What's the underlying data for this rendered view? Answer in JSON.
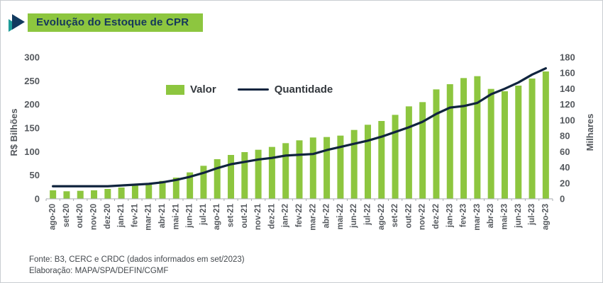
{
  "header": {
    "title": "Evolução do Estoque de CPR"
  },
  "legend": {
    "valor_label": "Valor",
    "quantidade_label": "Quantidade"
  },
  "axes": {
    "left_title": "R$ Bilhões",
    "right_title": "Milhares"
  },
  "footer": {
    "source_line": "Fonte: B3, CERC e CRDC (dados informados em set/2023)",
    "elaboration_line": "Elaboração: MAPA/SPA/DEFIN/CGMF"
  },
  "colors": {
    "bar": "#8dc63f",
    "line": "#10243e",
    "banner_bg": "#8dc63f",
    "banner_text": "#14365c",
    "axis_text": "#55595e",
    "baseline": "#a7abb0"
  },
  "chart_data": {
    "type": "bar",
    "title": "Evolução do Estoque de CPR",
    "categories": [
      "ago-20",
      "set-20",
      "out-20",
      "nov-20",
      "dez-20",
      "jan-21",
      "fev-21",
      "mar-21",
      "abr-21",
      "mai-21",
      "jun-21",
      "jul-21",
      "ago-21",
      "set-21",
      "out-21",
      "nov-21",
      "dez-21",
      "jan-22",
      "fev-22",
      "mar-22",
      "abr-22",
      "mai-22",
      "jun-22",
      "jul-22",
      "ago-22",
      "set-22",
      "out-22",
      "nov-22",
      "dez-22",
      "jan-23",
      "fev-23",
      "mar-23",
      "abr-23",
      "mai-23",
      "jun-23",
      "jul-23",
      "ago-23"
    ],
    "series": [
      {
        "name": "Valor",
        "type": "bar",
        "axis": "left",
        "unit": "R$ bilhões",
        "values": [
          18,
          16,
          17,
          18,
          21,
          24,
          28,
          33,
          38,
          45,
          56,
          70,
          84,
          93,
          99,
          104,
          110,
          118,
          124,
          130,
          131,
          134,
          146,
          157,
          165,
          178,
          196,
          205,
          232,
          243,
          256,
          260,
          233,
          228,
          240,
          255,
          270
        ]
      },
      {
        "name": "Quantidade",
        "type": "line",
        "axis": "right",
        "unit": "milhares",
        "values": [
          16,
          16,
          16,
          16,
          16,
          17,
          18,
          19,
          21,
          24,
          28,
          33,
          39,
          44,
          47,
          50,
          52,
          55,
          56,
          57,
          62,
          66,
          70,
          74,
          79,
          85,
          91,
          98,
          108,
          116,
          118,
          122,
          133,
          140,
          148,
          158,
          166
        ]
      }
    ],
    "left_axis": {
      "title": "R$ Bilhões",
      "min": 0,
      "max": 300,
      "step": 50
    },
    "right_axis": {
      "title": "Milhares",
      "min": 0,
      "max": 180,
      "step": 20
    },
    "grid": false,
    "legend_position": "inside-top-left"
  }
}
